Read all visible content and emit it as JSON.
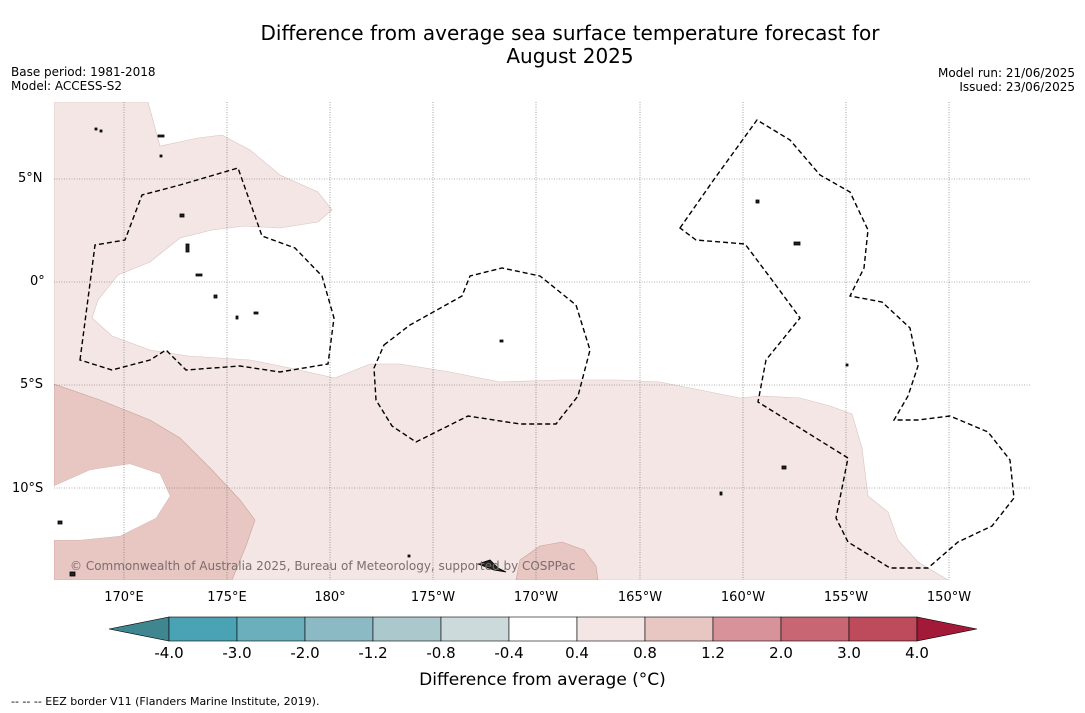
{
  "title_line1": "Difference from average sea surface temperature forecast for",
  "title_line2": "August 2025",
  "base_period": "Base period: 1981-2018",
  "model": "Model: ACCESS-S2",
  "model_run": "Model run: 21/06/2025",
  "issued": "Issued: 23/06/2025",
  "lat_labels": [
    "5°N",
    "0°",
    "5°S",
    "10°S"
  ],
  "lon_labels": [
    "170°E",
    "175°E",
    "180°",
    "175°W",
    "170°W",
    "165°W",
    "160°W",
    "155°W",
    "150°W"
  ],
  "copyright": "© Commonwealth of Australia 2025, Bureau of Meteorology, supported by COSPPac",
  "colorbar": {
    "ticks": [
      "-4.0",
      "-3.0",
      "-2.0",
      "-1.2",
      "-0.8",
      "-0.4",
      "0.4",
      "0.8",
      "1.2",
      "2.0",
      "3.0",
      "4.0"
    ],
    "colors": [
      "#4aa3b4",
      "#6baebc",
      "#8bbac4",
      "#abc9cd",
      "#cddadb",
      "#ffffff",
      "#f4e6e4",
      "#e8c6c2",
      "#d8939a",
      "#c96673",
      "#be4b5b"
    ],
    "under_color": "#3f8690",
    "over_color": "#a31a38",
    "label": "Difference from average (°C)"
  },
  "footer": "--  --  -- EEZ border V11 (Flanders Marine Institute, 2019)."
}
